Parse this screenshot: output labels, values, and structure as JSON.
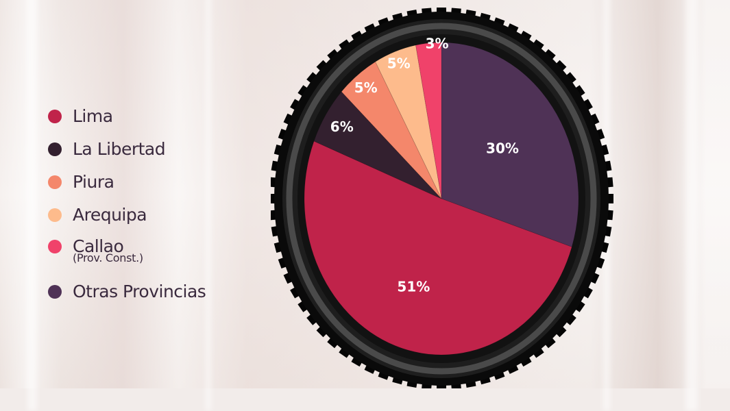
{
  "chart_data": {
    "type": "pie",
    "title": "",
    "slices": [
      {
        "label": "Lima",
        "sublabel": "",
        "value": 51,
        "value_label": "51%",
        "color": "#c0234a"
      },
      {
        "label": "La Libertad",
        "sublabel": "",
        "value": 6,
        "value_label": "6%",
        "color": "#33202f"
      },
      {
        "label": "Piura",
        "sublabel": "",
        "value": 5,
        "value_label": "5%",
        "color": "#f4876b"
      },
      {
        "label": "Arequipa",
        "sublabel": "",
        "value": 5,
        "value_label": "5%",
        "color": "#fdbb8c"
      },
      {
        "label": "Callao",
        "sublabel": "(Prov. Const.)",
        "value": 3,
        "value_label": "3%",
        "color": "#f0426a"
      },
      {
        "label": "Otras Provincias",
        "sublabel": "",
        "value": 30,
        "value_label": "30%",
        "color": "#4f3256"
      }
    ],
    "legend_position": "left",
    "frame": "tire"
  }
}
